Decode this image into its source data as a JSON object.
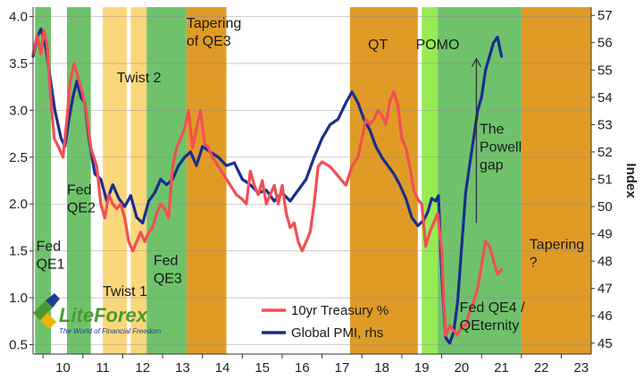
{
  "chart_data": {
    "type": "line",
    "ylabel_right": "Index",
    "x_ticks": [
      "10",
      "11",
      "12",
      "13",
      "14",
      "15",
      "16",
      "17",
      "18",
      "19",
      "20",
      "21",
      "22",
      "23"
    ],
    "x_range": [
      2009.75,
      2023.75
    ],
    "y_left_ticks": [
      "0.5",
      "1.0",
      "1.5",
      "2.0",
      "2.5",
      "3.0",
      "3.5",
      "4.0"
    ],
    "y_left_range": [
      0.4,
      4.1
    ],
    "y_right_ticks": [
      "45",
      "46",
      "47",
      "48",
      "49",
      "50",
      "51",
      "52",
      "53",
      "54",
      "55",
      "56",
      "57"
    ],
    "y_right_range": [
      44.6,
      57.3
    ],
    "bands": [
      {
        "start": 2009.8,
        "end": 2010.2,
        "color": "#6fc26b"
      },
      {
        "start": 2010.6,
        "end": 2011.2,
        "color": "#6fc26b"
      },
      {
        "start": 2011.5,
        "end": 2012.1,
        "color": "#fbd77b"
      },
      {
        "start": 2012.2,
        "end": 2012.6,
        "color": "#fbd77b"
      },
      {
        "start": 2012.6,
        "end": 2013.6,
        "color": "#6fc26b"
      },
      {
        "start": 2013.6,
        "end": 2014.6,
        "color": "#e09b26"
      },
      {
        "start": 2017.7,
        "end": 2019.4,
        "color": "#e09b26"
      },
      {
        "start": 2019.5,
        "end": 2019.9,
        "color": "#98ea54"
      },
      {
        "start": 2019.9,
        "end": 2022.0,
        "color": "#6fc26b"
      },
      {
        "start": 2022.0,
        "end": 2023.75,
        "color": "#e09b26"
      }
    ],
    "annotations": [
      {
        "lines": [
          "Fed",
          "QE1"
        ],
        "x": 2009.83,
        "y": 1.5
      },
      {
        "lines": [
          "Fed",
          "QE2"
        ],
        "x": 2010.6,
        "y": 2.1
      },
      {
        "lines": [
          "Twist 2"
        ],
        "x": 2011.85,
        "y": 3.3
      },
      {
        "lines": [
          "Twist 1"
        ],
        "x": 2011.5,
        "y": 1.02
      },
      {
        "lines": [
          "Fed",
          "QE3"
        ],
        "x": 2012.77,
        "y": 1.35
      },
      {
        "lines": [
          "Tapering",
          "of QE3"
        ],
        "x": 2013.6,
        "y": 3.88
      },
      {
        "lines": [
          "QT"
        ],
        "x": 2018.15,
        "y": 3.65
      },
      {
        "lines": [
          "POMO"
        ],
        "x": 2019.35,
        "y": 3.65
      },
      {
        "lines": [
          "The",
          "Powell",
          "gap"
        ],
        "x": 2020.95,
        "y": 2.75
      },
      {
        "lines": [
          "Tapering",
          "?"
        ],
        "x": 2022.2,
        "y": 1.52
      },
      {
        "lines": [
          "Fed QE4 /",
          "QEternity"
        ],
        "x": 2020.45,
        "y": 0.85
      }
    ],
    "arrow": {
      "x": 2020.87,
      "y_from": 1.8,
      "y_to": 3.55
    },
    "series": [
      {
        "name": "10yr Treasury %",
        "axis": "left",
        "color": "#f24f53",
        "x": [
          2009.75,
          2009.85,
          2009.95,
          2010.02,
          2010.1,
          2010.18,
          2010.28,
          2010.4,
          2010.5,
          2010.6,
          2010.68,
          2010.78,
          2010.88,
          2010.98,
          2011.08,
          2011.2,
          2011.35,
          2011.45,
          2011.55,
          2011.65,
          2011.75,
          2011.85,
          2011.95,
          2012.05,
          2012.15,
          2012.25,
          2012.35,
          2012.45,
          2012.55,
          2012.65,
          2012.75,
          2012.85,
          2012.95,
          2013.05,
          2013.15,
          2013.25,
          2013.35,
          2013.45,
          2013.55,
          2013.65,
          2013.75,
          2013.85,
          2013.95,
          2014.05,
          2014.15,
          2014.25,
          2014.4,
          2014.55,
          2014.7,
          2014.85,
          2015.0,
          2015.1,
          2015.2,
          2015.3,
          2015.4,
          2015.5,
          2015.6,
          2015.7,
          2015.8,
          2015.9,
          2016.0,
          2016.1,
          2016.2,
          2016.3,
          2016.4,
          2016.5,
          2016.6,
          2016.7,
          2016.8,
          2016.9,
          2017.0,
          2017.2,
          2017.4,
          2017.6,
          2017.75,
          2017.9,
          2018.0,
          2018.1,
          2018.2,
          2018.3,
          2018.4,
          2018.5,
          2018.6,
          2018.7,
          2018.8,
          2018.9,
          2019.0,
          2019.1,
          2019.2,
          2019.3,
          2019.4,
          2019.5,
          2019.6,
          2019.7,
          2019.8,
          2019.9,
          2020.0,
          2020.05,
          2020.1,
          2020.2,
          2020.3,
          2020.4,
          2020.5,
          2020.6,
          2020.7,
          2020.8,
          2020.9,
          2021.0,
          2021.1,
          2021.2,
          2021.3,
          2021.4,
          2021.5
        ],
        "values": [
          3.6,
          3.8,
          3.6,
          3.85,
          3.7,
          3.2,
          2.7,
          2.6,
          2.5,
          2.9,
          3.3,
          3.5,
          3.35,
          3.2,
          3.0,
          2.6,
          2.4,
          2.0,
          1.85,
          2.1,
          2.0,
          1.95,
          2.0,
          1.85,
          1.6,
          1.5,
          1.6,
          1.7,
          1.6,
          1.7,
          1.75,
          1.9,
          2.0,
          1.95,
          1.85,
          2.4,
          2.6,
          2.7,
          2.8,
          3.0,
          2.6,
          2.8,
          3.0,
          2.65,
          2.6,
          2.5,
          2.4,
          2.3,
          2.2,
          2.1,
          2.05,
          2.0,
          2.35,
          2.2,
          2.1,
          2.25,
          2.0,
          2.1,
          2.2,
          2.0,
          2.2,
          1.9,
          1.75,
          1.8,
          1.6,
          1.5,
          1.6,
          1.7,
          2.0,
          2.4,
          2.45,
          2.4,
          2.3,
          2.2,
          2.4,
          2.5,
          2.7,
          2.9,
          2.85,
          2.9,
          3.0,
          2.95,
          2.85,
          3.1,
          3.2,
          3.05,
          2.7,
          2.6,
          2.4,
          2.15,
          2.05,
          2.0,
          1.55,
          1.7,
          1.8,
          1.9,
          1.5,
          1.0,
          0.6,
          0.7,
          0.65,
          0.6,
          0.7,
          0.7,
          0.85,
          0.95,
          1.1,
          1.35,
          1.6,
          1.55,
          1.4,
          1.25,
          1.3
        ]
      },
      {
        "name": "Global PMI, rhs",
        "axis": "right",
        "color": "#1b2d8e",
        "x": [
          2009.75,
          2009.85,
          2009.95,
          2010.05,
          2010.15,
          2010.3,
          2010.45,
          2010.55,
          2010.65,
          2010.75,
          2010.85,
          2010.95,
          2011.05,
          2011.15,
          2011.3,
          2011.45,
          2011.6,
          2011.75,
          2011.9,
          2012.05,
          2012.2,
          2012.35,
          2012.5,
          2012.65,
          2012.8,
          2012.95,
          2013.1,
          2013.25,
          2013.4,
          2013.55,
          2013.7,
          2013.85,
          2014.0,
          2014.2,
          2014.4,
          2014.6,
          2014.8,
          2015.0,
          2015.2,
          2015.4,
          2015.6,
          2015.8,
          2016.0,
          2016.2,
          2016.4,
          2016.6,
          2016.8,
          2017.0,
          2017.2,
          2017.4,
          2017.6,
          2017.75,
          2017.9,
          2018.05,
          2018.2,
          2018.35,
          2018.5,
          2018.65,
          2018.8,
          2018.95,
          2019.1,
          2019.25,
          2019.4,
          2019.55,
          2019.65,
          2019.75,
          2019.85,
          2019.92,
          2019.97,
          2020.02,
          2020.1,
          2020.2,
          2020.3,
          2020.4,
          2020.5,
          2020.6,
          2020.7,
          2020.8,
          2020.9,
          2021.0,
          2021.1,
          2021.2,
          2021.3,
          2021.4,
          2021.5
        ],
        "values": [
          55.5,
          56.2,
          56.5,
          56.0,
          55.0,
          53.5,
          52.5,
          52.2,
          53.2,
          54.0,
          54.6,
          54.0,
          53.8,
          52.5,
          51.2,
          51.0,
          50.2,
          50.8,
          50.3,
          50.0,
          50.4,
          49.6,
          49.4,
          50.2,
          50.5,
          51.0,
          50.8,
          51.0,
          51.5,
          51.8,
          52.0,
          51.5,
          52.2,
          52.0,
          51.8,
          51.5,
          51.6,
          51.0,
          50.8,
          50.5,
          50.6,
          50.2,
          50.5,
          50.2,
          50.6,
          51.0,
          51.8,
          52.5,
          53.0,
          53.2,
          53.8,
          54.2,
          53.8,
          53.2,
          52.8,
          52.2,
          51.8,
          51.5,
          51.2,
          50.8,
          50.3,
          49.6,
          49.3,
          49.5,
          49.8,
          50.3,
          50.2,
          50.4,
          48.5,
          47.0,
          45.2,
          45.0,
          45.4,
          46.5,
          48.5,
          50.5,
          51.5,
          52.5,
          53.5,
          54.0,
          55.0,
          55.5,
          56.0,
          56.2,
          55.5
        ]
      }
    ]
  },
  "logo": {
    "name": "LiteForex",
    "tagline": "The World of Financial Freedom"
  }
}
